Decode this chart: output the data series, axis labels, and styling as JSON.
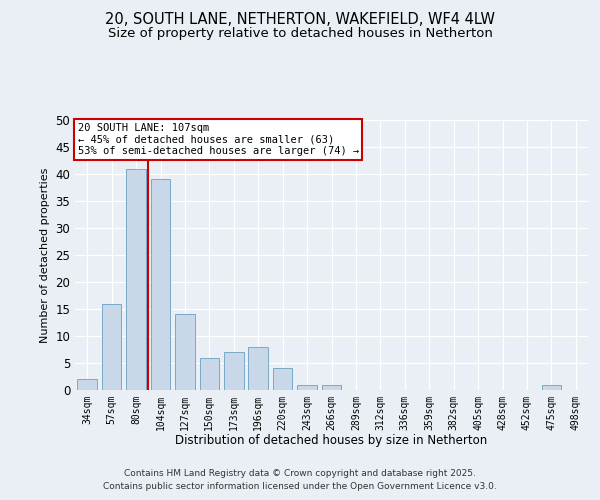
{
  "title1": "20, SOUTH LANE, NETHERTON, WAKEFIELD, WF4 4LW",
  "title2": "Size of property relative to detached houses in Netherton",
  "xlabel": "Distribution of detached houses by size in Netherton",
  "ylabel": "Number of detached properties",
  "bar_labels": [
    "34sqm",
    "57sqm",
    "80sqm",
    "104sqm",
    "127sqm",
    "150sqm",
    "173sqm",
    "196sqm",
    "220sqm",
    "243sqm",
    "266sqm",
    "289sqm",
    "312sqm",
    "336sqm",
    "359sqm",
    "382sqm",
    "405sqm",
    "428sqm",
    "452sqm",
    "475sqm",
    "498sqm"
  ],
  "bar_values": [
    2,
    16,
    41,
    39,
    14,
    6,
    7,
    8,
    4,
    1,
    1,
    0,
    0,
    0,
    0,
    0,
    0,
    0,
    0,
    1,
    0
  ],
  "bar_color": "#c8d8e8",
  "bar_edgecolor": "#7aaac8",
  "vline_color": "#cc0000",
  "annotation_text": "20 SOUTH LANE: 107sqm\n← 45% of detached houses are smaller (63)\n53% of semi-detached houses are larger (74) →",
  "annotation_box_edgecolor": "#cc0000",
  "annotation_box_facecolor": "white",
  "ylim": [
    0,
    50
  ],
  "yticks": [
    0,
    5,
    10,
    15,
    20,
    25,
    30,
    35,
    40,
    45,
    50
  ],
  "bg_color": "#eaeff6",
  "plot_bg_color": "#eaeff6",
  "footer1": "Contains HM Land Registry data © Crown copyright and database right 2025.",
  "footer2": "Contains public sector information licensed under the Open Government Licence v3.0.",
  "title_fontsize": 10.5,
  "subtitle_fontsize": 9.5,
  "footer_fontsize": 6.5
}
